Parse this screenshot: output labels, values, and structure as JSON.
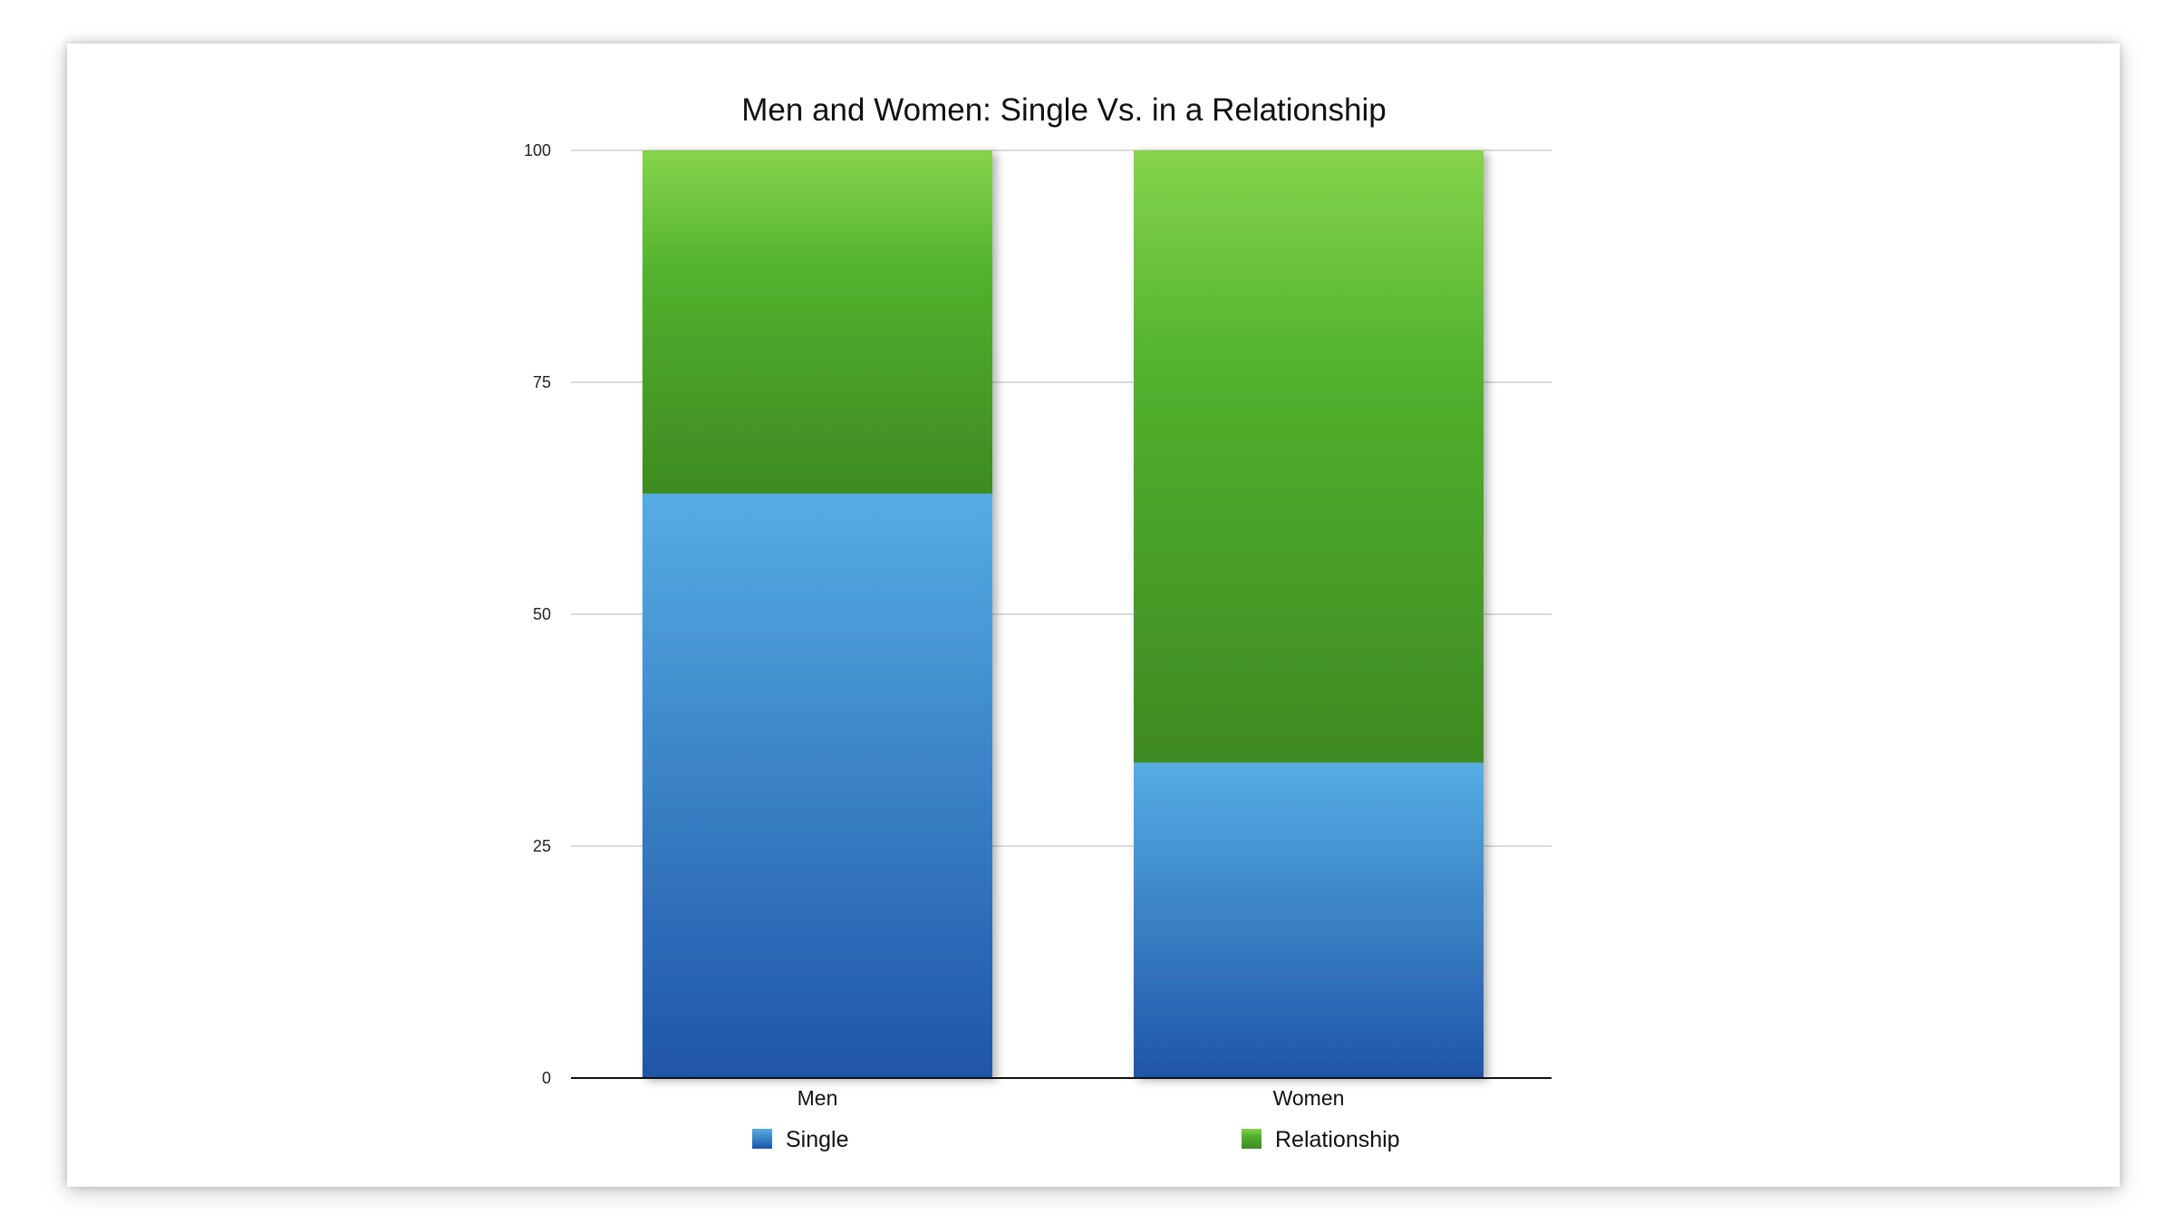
{
  "chart_data": {
    "type": "bar",
    "stacked": true,
    "title": "Men and Women: Single Vs. in a Relationship",
    "categories": [
      "Men",
      "Women"
    ],
    "series": [
      {
        "name": "Single",
        "values": [
          63,
          34
        ],
        "color": "#2f7ed4"
      },
      {
        "name": "Relationship",
        "values": [
          37,
          66
        ],
        "color": "#4fb233"
      }
    ],
    "yticks": [
      0,
      25,
      50,
      75,
      100
    ],
    "ylim": [
      0,
      100
    ],
    "grid": true,
    "legend_position": "bottom"
  }
}
